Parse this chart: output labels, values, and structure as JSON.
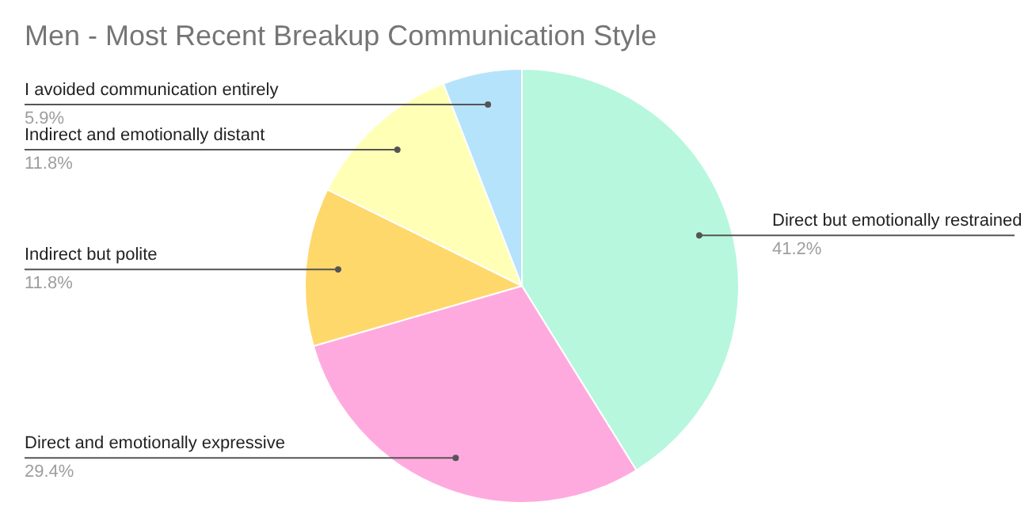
{
  "chart_data": {
    "type": "pie",
    "title": "Men - Most Recent Breakup Communication Style",
    "categories": [
      "Direct but emotionally restrained",
      "Direct and emotionally expressive",
      "Indirect but polite",
      "Indirect and emotionally distant",
      "I avoided communication entirely"
    ],
    "values": [
      41.2,
      29.4,
      11.8,
      11.8,
      5.9
    ],
    "value_labels": [
      "41.2%",
      "29.4%",
      "11.8%",
      "11.8%",
      "5.9%"
    ],
    "colors": [
      "#b7f7dd",
      "#ffaadf",
      "#ffd86b",
      "#ffffb6",
      "#b5e3fb"
    ]
  }
}
